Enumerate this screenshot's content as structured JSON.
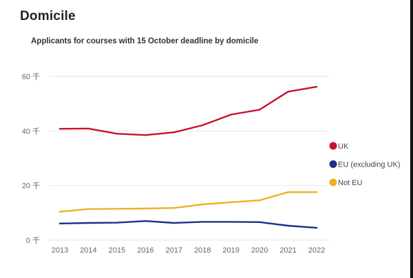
{
  "page": {
    "section_title": "Domicile"
  },
  "chart_data": {
    "type": "line",
    "title": "Applicants for courses with 15 October deadline by domicile",
    "xlabel": "",
    "ylabel": "",
    "x": [
      "2013",
      "2014",
      "2015",
      "2016",
      "2017",
      "2018",
      "2019",
      "2020",
      "2021",
      "2022"
    ],
    "ylim": [
      0,
      60
    ],
    "yticks": [
      0,
      20,
      40,
      60
    ],
    "ytick_labels": [
      "0 千",
      "20 千",
      "40 千",
      "60 千"
    ],
    "grid": true,
    "legend_position": "right",
    "unit": "thousands",
    "series": [
      {
        "name": "UK",
        "color": "#c8102e",
        "values": [
          40.8,
          40.9,
          39.0,
          38.5,
          39.5,
          42.1,
          46.0,
          47.8,
          54.4,
          56.2
        ]
      },
      {
        "name": "EU (excluding UK)",
        "color": "#1e2f86",
        "values": [
          6.1,
          6.3,
          6.4,
          7.0,
          6.3,
          6.7,
          6.7,
          6.6,
          5.3,
          4.5
        ]
      },
      {
        "name": "Not EU",
        "color": "#f0b025",
        "values": [
          10.4,
          11.4,
          11.5,
          11.6,
          11.8,
          13.1,
          13.9,
          14.6,
          17.6,
          17.6
        ]
      }
    ]
  }
}
